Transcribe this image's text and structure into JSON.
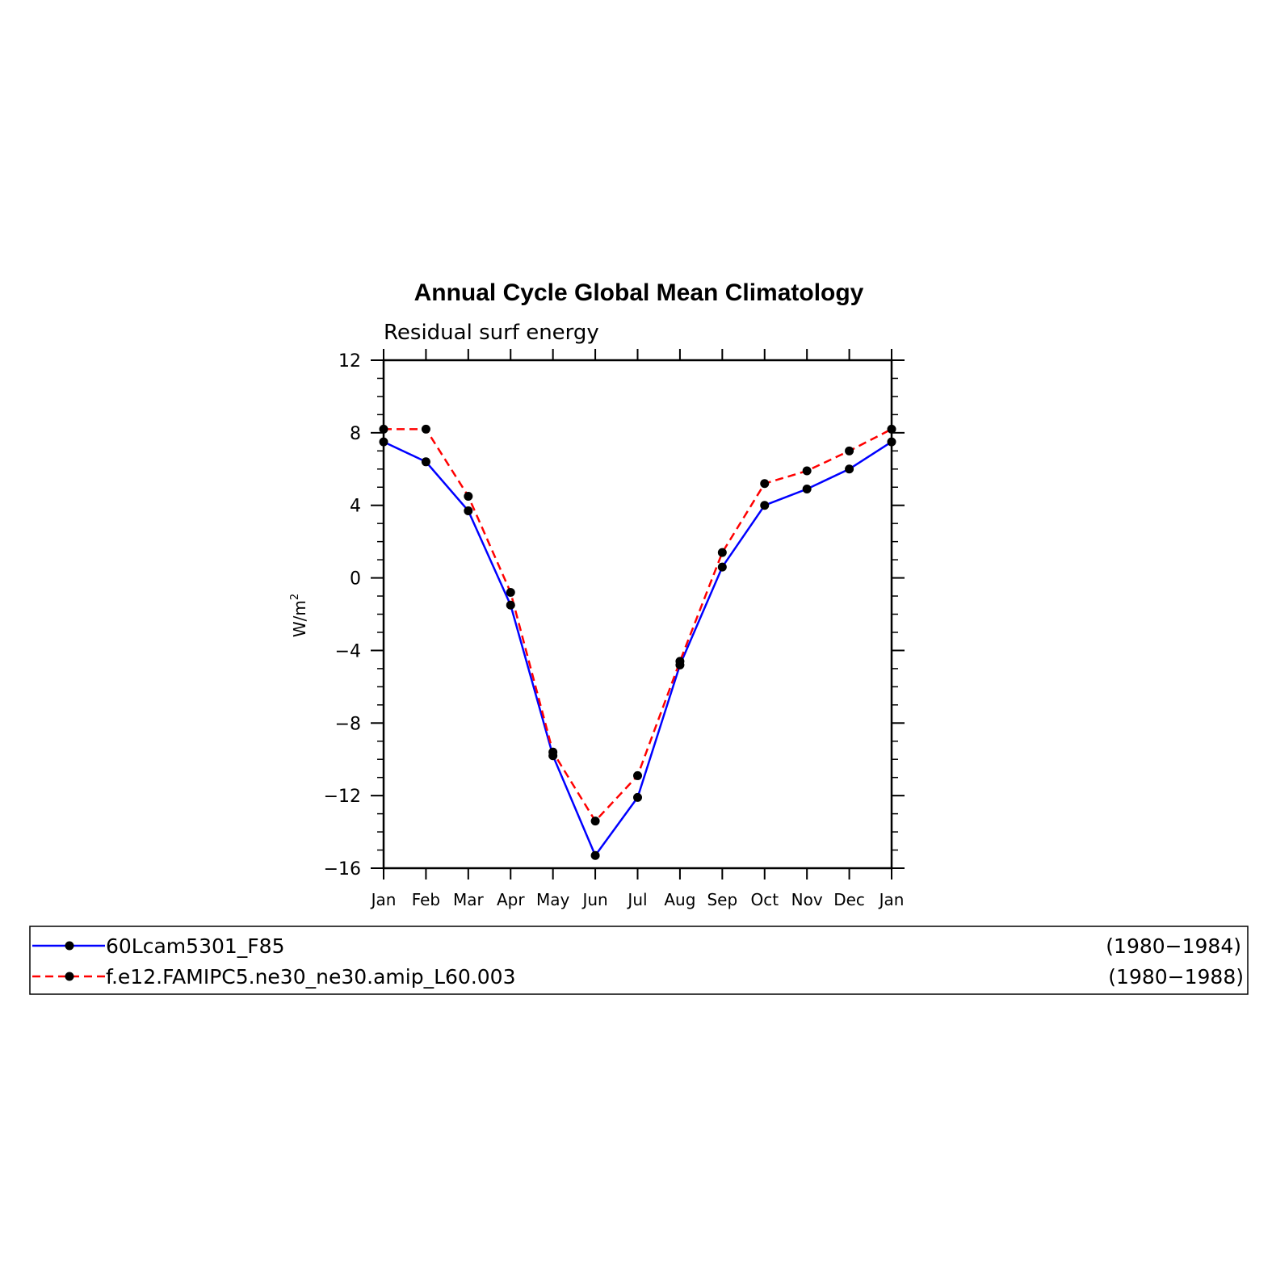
{
  "chart_data": {
    "type": "line",
    "title": "Annual Cycle Global Mean Climatology",
    "subtitle": "Residual surf energy",
    "ylabel": "W/m",
    "ylabel_superscript": "2",
    "xlabel": "",
    "ylim": [
      -16,
      12
    ],
    "yticks": [
      -16,
      -12,
      -8,
      -4,
      0,
      4,
      8,
      12
    ],
    "ytick_labels": [
      "−16",
      "−12",
      "−8",
      "−4",
      "0",
      "4",
      "8",
      "12"
    ],
    "categories": [
      "Jan",
      "Feb",
      "Mar",
      "Apr",
      "May",
      "Jun",
      "Jul",
      "Aug",
      "Sep",
      "Oct",
      "Nov",
      "Dec",
      "Jan"
    ],
    "grid": false,
    "legend_position": "bottom",
    "series": [
      {
        "name": "60Lcam5301_F85",
        "period": "(1980−1984)",
        "color": "#0000ff",
        "dash": "solid",
        "values": [
          7.5,
          6.4,
          3.7,
          -1.5,
          -9.8,
          -15.3,
          -12.1,
          -4.8,
          0.6,
          4.0,
          4.9,
          6.0,
          7.5
        ]
      },
      {
        "name": "f.e12.FAMIPC5.ne30_ne30.amip_L60.003",
        "period": "(1980−1988)",
        "color": "#ff0000",
        "dash": "dashed",
        "values": [
          8.2,
          8.2,
          4.5,
          -0.8,
          -9.6,
          -13.4,
          -10.9,
          -4.6,
          1.4,
          5.2,
          5.9,
          7.0,
          8.2
        ]
      }
    ]
  }
}
